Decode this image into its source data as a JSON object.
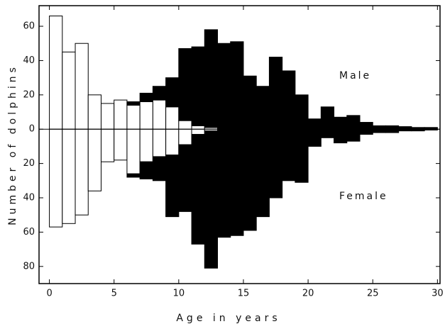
{
  "chart_data": {
    "type": "histogram",
    "x_label": "Age in years",
    "y_label": "Number of dolphins",
    "annotations": [
      "Male",
      "Female"
    ],
    "bins": [
      0,
      1,
      2,
      3,
      4,
      5,
      6,
      7,
      8,
      9,
      10,
      11,
      12,
      13,
      14,
      15,
      16,
      17,
      18,
      19,
      20,
      21,
      22,
      23,
      24,
      25,
      26,
      27,
      28,
      29,
      30
    ],
    "series": [
      {
        "color": "#ffffff",
        "values": [
          66,
          45,
          50,
          20,
          15,
          17,
          14,
          16,
          17,
          13,
          5,
          2,
          1,
          0,
          0,
          0,
          0,
          0,
          0,
          0,
          0,
          0,
          0,
          0,
          0,
          0,
          0,
          0,
          0,
          0
        ]
      },
      {
        "color": "#000000",
        "values": [
          0,
          0,
          0,
          0,
          0,
          0,
          2,
          5,
          8,
          17,
          42,
          46,
          57,
          50,
          51,
          31,
          25,
          42,
          34,
          20,
          6,
          13,
          7,
          8,
          4,
          2,
          2,
          1.5,
          1,
          1
        ]
      },
      {
        "color": "#ffffff",
        "values": [
          -57,
          -55,
          -50,
          -36,
          -19,
          -18,
          -26,
          -19,
          -16,
          -15,
          -9,
          -3,
          -1,
          0,
          0,
          0,
          0,
          0,
          0,
          0,
          0,
          0,
          0,
          0,
          0,
          0,
          0,
          0,
          0,
          0
        ]
      },
      {
        "color": "#000000",
        "values": [
          0,
          0,
          0,
          0,
          0,
          0,
          -2,
          -10,
          -14,
          -36,
          -39,
          -64,
          -80,
          -63,
          -62,
          -59,
          -51,
          -40,
          -30,
          -31,
          -10,
          -5,
          -8,
          -7,
          -3,
          -2,
          -2,
          -1,
          -1,
          -0.5
        ]
      }
    ],
    "xlim": [
      -0.8,
      30.2
    ],
    "ylim": [
      -90,
      72
    ],
    "xticks": [
      0,
      5,
      10,
      15,
      20,
      25,
      30
    ],
    "yticks": [
      60,
      40,
      20,
      0,
      {
        "value": -20,
        "label": "20"
      },
      {
        "value": -40,
        "label": "40"
      },
      {
        "value": -60,
        "label": "60"
      },
      {
        "value": -80,
        "label": "80"
      }
    ]
  }
}
